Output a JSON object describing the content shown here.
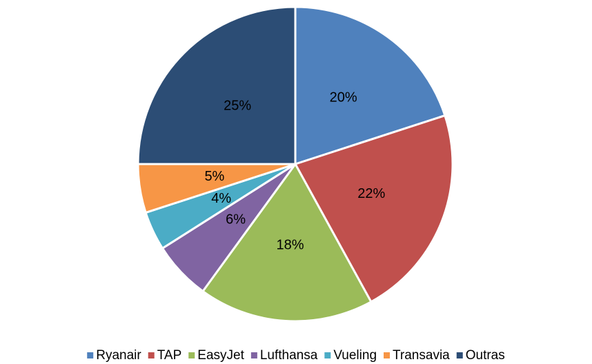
{
  "chart_data": {
    "type": "pie",
    "categories": [
      "Ryanair",
      "TAP",
      "EasyJet",
      "Lufthansa",
      "Vueling",
      "Transavia",
      "Outras"
    ],
    "values": [
      20,
      22,
      18,
      6,
      4,
      5,
      25
    ],
    "value_labels": [
      "20%",
      "22%",
      "18%",
      "6%",
      "4%",
      "5%",
      "25%"
    ],
    "colors": [
      "#4f81bd",
      "#c0504d",
      "#9bbb59",
      "#8064a2",
      "#4bacc6",
      "#f79646",
      "#2c4d75"
    ],
    "legend": "bottom"
  }
}
